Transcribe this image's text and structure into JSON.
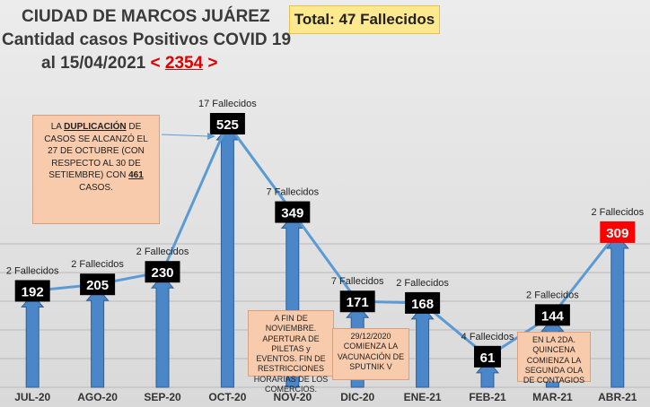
{
  "header": {
    "line1": "CIUDAD DE MARCOS JUÁREZ",
    "line2": "Cantidad casos Positivos COVID 19",
    "line3": "al 15/04/2021",
    "total_open": "< ",
    "total_cases": "2354",
    "total_close": " >",
    "deaths_total": "Total: 47 Fallecidos"
  },
  "notes": {
    "duplicacion": {
      "part1": "LA ",
      "part2": "DUPLICACIÓN",
      "part3": " DE CASOS SE ALCANZÓ EL 27 DE OCTUBRE (CON RESPECTO AL 30 DE SETIEMBRE) CON ",
      "part4": "461",
      "part5": " CASOS."
    },
    "noviembre": "A FIN DE NOVIEMBRE. APERTURA DE PILETAS y EVENTOS. FIN DE RESTRICCIONES HORARIAS DE LOS COMERCIOS.",
    "vacunacion": "29/12/2020 COMIENZA LA VACUNACIÓN DE SPUTNIK V",
    "segunda_ola": "EN LA 2DA. QUINCENA COMIENZA LA SEGUNDA OLA DE CONTAGIOS"
  },
  "colors": {
    "bar": "#4a86c8",
    "bar_edge": "#2f5f96",
    "line": "#5b9bd5",
    "label_bg": "#000000",
    "label_highlight_bg": "#ff0000",
    "note_bg": "#f8cbad"
  },
  "chart_data": {
    "type": "bar",
    "categories": [
      "JUL-20",
      "AGO-20",
      "SEP-20",
      "OCT-20",
      "NOV-20",
      "DIC-20",
      "ENE-21",
      "FEB-21",
      "MAR-21",
      "ABR-21"
    ],
    "values": [
      192,
      205,
      230,
      525,
      349,
      171,
      168,
      61,
      144,
      309
    ],
    "deaths_labels": [
      "2 Fallecidos",
      "2 Fallecidos",
      "2 Fallecidos",
      "17 Fallecidos",
      "7 Fallecidos",
      "7 Fallecidos",
      "2 Fallecidos",
      "4 Fallecidos",
      "2 Fallecidos",
      "2 Fallecidos"
    ],
    "highlight_index": 9,
    "ylim": [
      0,
      550
    ],
    "grid": true,
    "line_overlay": true
  }
}
